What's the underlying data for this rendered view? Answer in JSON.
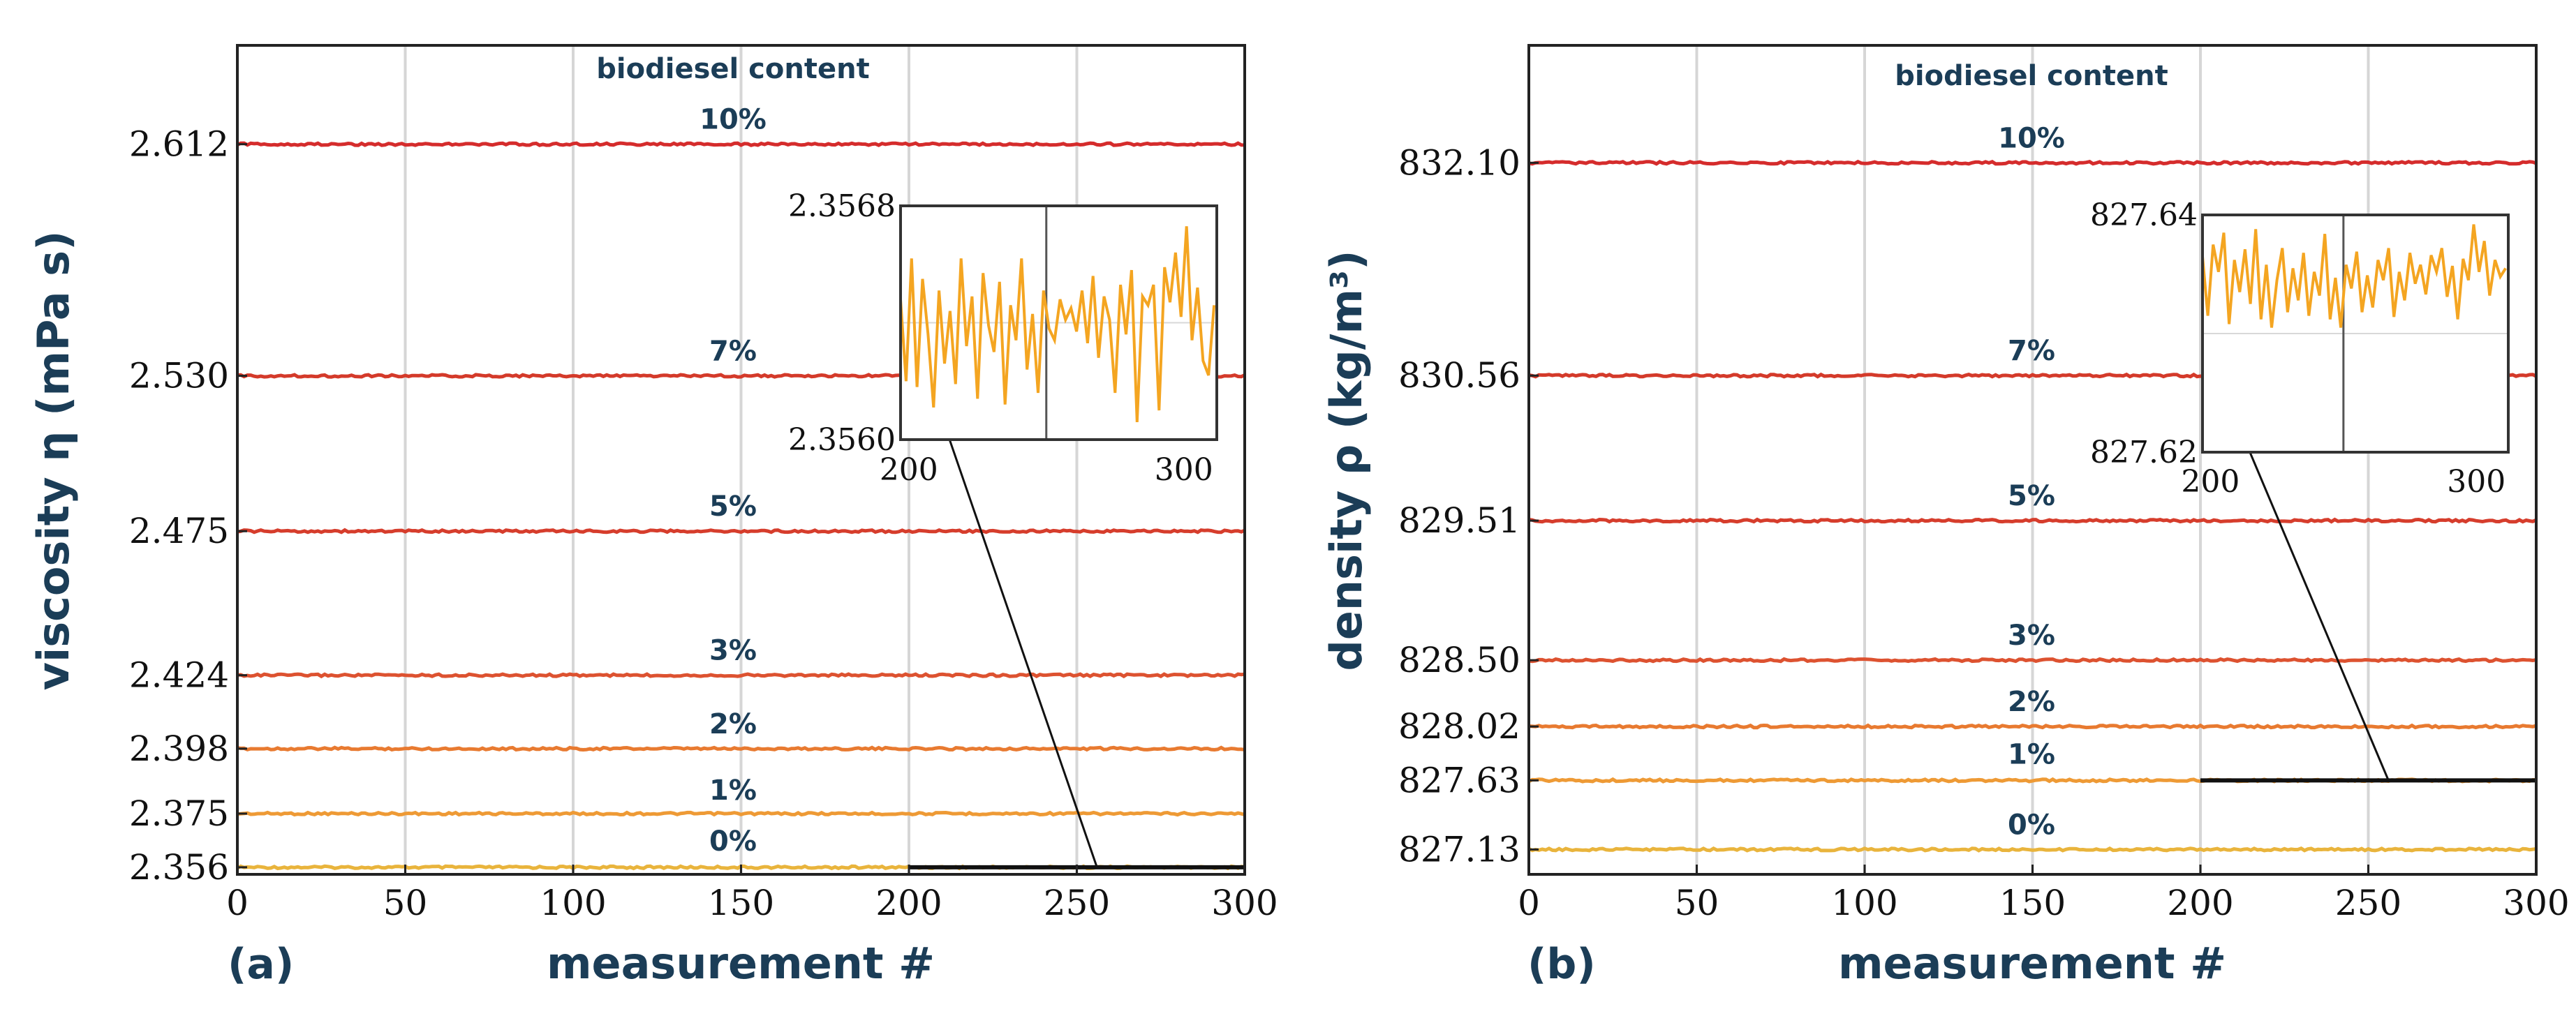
{
  "chart_data": [
    {
      "panel_label": "(a)",
      "type": "line",
      "title": "",
      "legend_title": "biodiesel content",
      "xlabel": "measurement #",
      "ylabel": "viscosity η (mPa s)",
      "xlim": [
        0,
        300
      ],
      "ylim": [
        2.3535,
        2.647
      ],
      "grid": "vertical",
      "x_ticks": [
        0,
        50,
        100,
        150,
        200,
        250,
        300
      ],
      "x_tick_labels": [
        "0",
        "50",
        "100",
        "150",
        "200",
        "250",
        "300"
      ],
      "y_ticks": [
        2.356,
        2.375,
        2.398,
        2.424,
        2.475,
        2.53,
        2.612
      ],
      "y_tick_labels": [
        "2.356",
        "2.375",
        "2.398",
        "2.424",
        "2.475",
        "2.530",
        "2.612"
      ],
      "series": [
        {
          "name": "0%",
          "value": 2.356,
          "color": "#e9b43c"
        },
        {
          "name": "1%",
          "value": 2.375,
          "color": "#ee9a35"
        },
        {
          "name": "2%",
          "value": 2.398,
          "color": "#e87a30"
        },
        {
          "name": "3%",
          "value": 2.424,
          "color": "#dd5230"
        },
        {
          "name": "5%",
          "value": 2.475,
          "color": "#d63d2c"
        },
        {
          "name": "7%",
          "value": 2.53,
          "color": "#d43a2a"
        },
        {
          "name": "10%",
          "value": 2.612,
          "color": "#d52c2c"
        }
      ],
      "zoom_range": {
        "x": [
          200,
          300
        ],
        "series": "0%"
      },
      "inset": {
        "xlim": [
          197,
          312
        ],
        "ylim": [
          2.356,
          2.3568
        ],
        "x_ticks": [
          200,
          300
        ],
        "x_tick_labels": [
          "200",
          "300"
        ],
        "y_ticks": [
          2.356,
          2.3568
        ],
        "y_tick_labels": [
          "2.3560",
          "2.3568"
        ],
        "mid_gridline_y": 2.3564,
        "color": "#f4a521",
        "x": [
          197,
          199,
          201,
          203,
          205,
          207,
          209,
          211,
          213,
          215,
          217,
          219,
          221,
          223,
          225,
          227,
          229,
          231,
          233,
          235,
          237,
          239,
          241,
          243,
          245,
          247,
          249,
          251,
          253,
          255,
          257,
          259,
          261,
          263,
          265,
          267,
          269,
          271,
          273,
          275,
          277,
          279,
          281,
          283,
          285,
          287,
          289,
          291,
          293,
          295,
          297,
          299,
          301,
          303,
          305,
          307,
          309,
          311
        ],
        "y": [
          2.35648,
          2.3562,
          2.35662,
          2.35618,
          2.35655,
          2.35636,
          2.35611,
          2.35651,
          2.35626,
          2.35644,
          2.35619,
          2.35662,
          2.35632,
          2.35649,
          2.35614,
          2.35657,
          2.35639,
          2.3563,
          2.35654,
          2.35612,
          2.35646,
          2.35634,
          2.35662,
          2.35624,
          2.35643,
          2.35616,
          2.35651,
          2.35638,
          2.35634,
          2.35648,
          2.35641,
          2.35645,
          2.35637,
          2.35651,
          2.35633,
          2.35656,
          2.35628,
          2.35649,
          2.35641,
          2.35616,
          2.35653,
          2.35636,
          2.35658,
          2.35606,
          2.35649,
          2.35646,
          2.35653,
          2.3561,
          2.35659,
          2.35647,
          2.35664,
          2.35642,
          2.35673,
          2.35634,
          2.35652,
          2.35627,
          2.35622,
          2.35646
        ]
      }
    },
    {
      "panel_label": "(b)",
      "type": "line",
      "title": "",
      "legend_title": "biodiesel content",
      "xlabel": "measurement #",
      "ylabel": "density ρ (kg/m³)",
      "xlim": [
        0,
        300
      ],
      "ylim": [
        826.95,
        832.95
      ],
      "grid": "vertical",
      "x_ticks": [
        0,
        50,
        100,
        150,
        200,
        250,
        300
      ],
      "x_tick_labels": [
        "0",
        "50",
        "100",
        "150",
        "200",
        "250",
        "300"
      ],
      "y_ticks": [
        827.13,
        827.63,
        828.02,
        828.5,
        829.51,
        830.56,
        832.1
      ],
      "y_tick_labels": [
        "827.13",
        "827.63",
        "828.02",
        "828.50",
        "829.51",
        "830.56",
        "832.10"
      ],
      "series": [
        {
          "name": "0%",
          "value": 827.13,
          "color": "#e9b43c"
        },
        {
          "name": "1%",
          "value": 827.63,
          "color": "#ee9a35"
        },
        {
          "name": "2%",
          "value": 828.02,
          "color": "#e87a30"
        },
        {
          "name": "3%",
          "value": 828.5,
          "color": "#dd5230"
        },
        {
          "name": "5%",
          "value": 829.51,
          "color": "#d63d2c"
        },
        {
          "name": "7%",
          "value": 830.56,
          "color": "#d43a2a"
        },
        {
          "name": "10%",
          "value": 832.1,
          "color": "#d52c2c"
        }
      ],
      "zoom_range": {
        "x": [
          200,
          300
        ],
        "series": "1%"
      },
      "inset": {
        "xlim": [
          197,
          312
        ],
        "ylim": [
          827.62,
          827.64
        ],
        "x_ticks": [
          200,
          300
        ],
        "x_tick_labels": [
          "200",
          "300"
        ],
        "y_ticks": [
          827.62,
          827.64
        ],
        "y_tick_labels": [
          "827.62",
          "827.64"
        ],
        "mid_gridline_y": 827.63,
        "color": "#f4a521",
        "x": [
          197,
          199,
          201,
          203,
          205,
          207,
          209,
          211,
          213,
          215,
          217,
          219,
          221,
          223,
          225,
          227,
          229,
          231,
          233,
          235,
          237,
          239,
          241,
          243,
          245,
          247,
          249,
          251,
          253,
          255,
          257,
          259,
          261,
          263,
          265,
          267,
          269,
          271,
          273,
          275,
          277,
          279,
          281,
          283,
          285,
          287,
          289,
          291,
          293,
          295,
          297,
          299,
          301,
          303,
          305,
          307,
          309,
          311
        ],
        "y": [
          827.6365,
          827.6315,
          827.6375,
          827.6352,
          827.6385,
          827.6308,
          827.6362,
          827.6335,
          827.6371,
          827.6325,
          827.6388,
          827.6312,
          827.6358,
          827.6305,
          827.6345,
          827.6372,
          827.6318,
          827.6355,
          827.6328,
          827.6368,
          827.6315,
          827.6352,
          827.6332,
          827.6384,
          827.6312,
          827.6347,
          827.6305,
          827.6358,
          827.6338,
          827.6369,
          827.6318,
          827.6349,
          827.6322,
          827.6362,
          827.6345,
          827.6372,
          827.6314,
          827.6352,
          827.6328,
          827.6368,
          827.6342,
          827.6358,
          827.6333,
          827.6366,
          827.6352,
          827.6372,
          827.6331,
          827.6357,
          827.6312,
          827.6363,
          827.6345,
          827.6392,
          827.6352,
          827.6378,
          827.6332,
          827.6362,
          827.6348,
          827.6355
        ]
      }
    }
  ]
}
